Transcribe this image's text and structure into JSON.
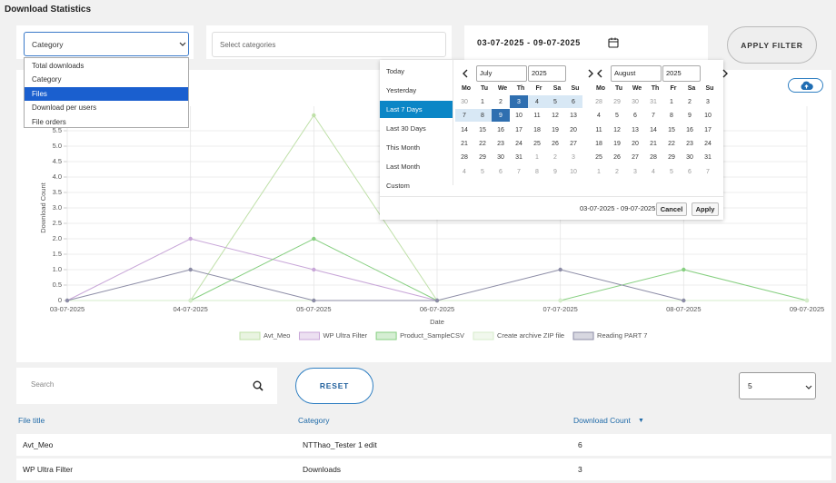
{
  "header": {
    "title": "Download Statistics"
  },
  "filters": {
    "report_select": "Category",
    "report_options": [
      "Total downloads",
      "Category",
      "Files",
      "Download per users",
      "File orders"
    ],
    "category_placeholder": "Select categories",
    "date_range": "03-07-2025 - 09-07-2025",
    "apply_button": "APPLY FILTER"
  },
  "date_picker": {
    "ranges": [
      "Today",
      "Yesterday",
      "Last 7 Days",
      "Last 30 Days",
      "This Month",
      "Last Month",
      "Custom"
    ],
    "calendars": [
      {
        "month": "July",
        "year": "2025",
        "weekdays": [
          "Mo",
          "Tu",
          "We",
          "Th",
          "Fr",
          "Sa",
          "Su"
        ],
        "weeks": [
          [
            30,
            1,
            2,
            3,
            4,
            5,
            6
          ],
          [
            7,
            8,
            9,
            10,
            11,
            12,
            13
          ],
          [
            14,
            15,
            16,
            17,
            18,
            19,
            20
          ],
          [
            21,
            22,
            23,
            24,
            25,
            26,
            27
          ],
          [
            28,
            29,
            30,
            31,
            1,
            2,
            3
          ],
          [
            4,
            5,
            6,
            7,
            8,
            9,
            10
          ]
        ]
      },
      {
        "month": "August",
        "year": "2025",
        "weekdays": [
          "Mo",
          "Tu",
          "We",
          "Th",
          "Fr",
          "Sa",
          "Su"
        ],
        "weeks": [
          [
            28,
            29,
            30,
            31,
            1,
            2,
            3
          ],
          [
            4,
            5,
            6,
            7,
            8,
            9,
            10
          ],
          [
            11,
            12,
            13,
            14,
            15,
            16,
            17
          ],
          [
            18,
            19,
            20,
            21,
            22,
            23,
            24
          ],
          [
            25,
            26,
            27,
            28,
            29,
            30,
            31
          ],
          [
            1,
            2,
            3,
            4,
            5,
            6,
            7
          ]
        ]
      }
    ],
    "selected_range": "03-07-2025 - 09-07-2025",
    "cancel": "Cancel",
    "apply": "Apply"
  },
  "chart_data": {
    "type": "line",
    "x_label": "Date",
    "y_label": "Download Count",
    "categories": [
      "03-07-2025",
      "04-07-2025",
      "05-07-2025",
      "06-07-2025",
      "07-07-2025",
      "08-07-2025",
      "09-07-2025"
    ],
    "series": [
      {
        "name": "Avt_Meo",
        "color": "#bfe0a8",
        "values": [
          null,
          0,
          6,
          0,
          null,
          null,
          null
        ]
      },
      {
        "name": "WP Ultra Filter",
        "color": "#c8a6d8",
        "values": [
          0,
          2,
          1,
          0,
          null,
          null,
          null
        ]
      },
      {
        "name": "Product_SampleCSV",
        "color": "#86cf80",
        "values": [
          null,
          0,
          2,
          0,
          0,
          1,
          0
        ]
      },
      {
        "name": "Create archive ZIP file",
        "color": "#d6eccb",
        "values": [
          0,
          0,
          0,
          0,
          0,
          0,
          0
        ]
      },
      {
        "name": "Reading PART 7",
        "color": "#8c8ca6",
        "values": [
          0,
          1,
          0,
          0,
          1,
          0,
          null
        ]
      }
    ],
    "ylim": [
      0,
      6
    ],
    "yticks": [
      0,
      0.5,
      {
        "value": 1,
        "label": "1.0"
      },
      1.5,
      {
        "value": 2,
        "label": "2.0"
      },
      2.5,
      {
        "value": 3,
        "label": "3.0"
      },
      3.5,
      {
        "value": 4,
        "label": "4.0"
      },
      4.5,
      {
        "value": 5,
        "label": "5.0"
      },
      5.5
    ],
    "grid": true,
    "legend": "bottom"
  },
  "table_controls": {
    "search_placeholder": "Search",
    "reset_button": "RESET",
    "page_size": "5"
  },
  "table": {
    "columns": [
      "File title",
      "Category",
      "Download Count"
    ],
    "rows": [
      [
        "Avt_Meo",
        "NTThao_Tester 1 edit",
        6
      ],
      [
        "WP Ultra Filter",
        "Downloads",
        3
      ]
    ]
  }
}
